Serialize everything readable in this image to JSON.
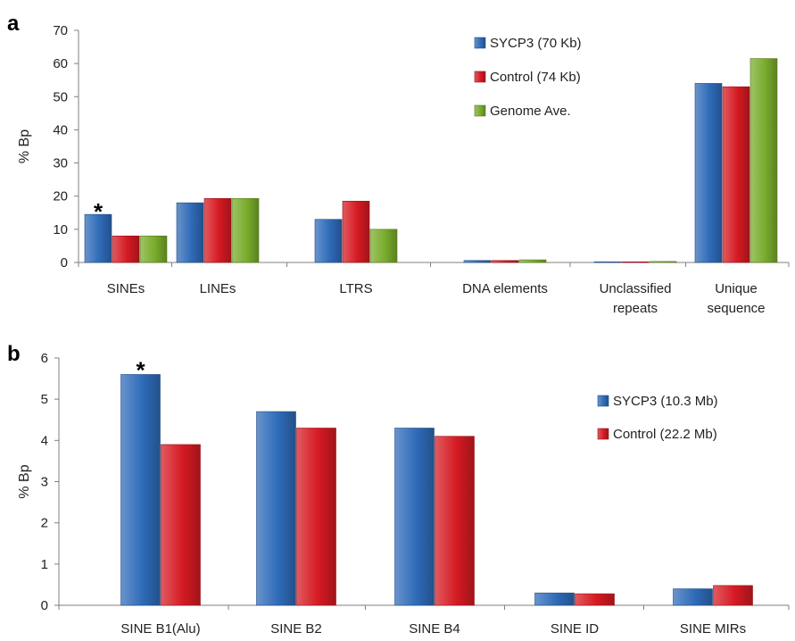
{
  "chart_data": [
    {
      "panel": "a",
      "type": "bar",
      "ylabel": "% Bp",
      "ylim": [
        0,
        70
      ],
      "yticks": [
        0,
        10,
        20,
        30,
        40,
        50,
        60,
        70
      ],
      "categories": [
        [
          "SINEs"
        ],
        [
          "LINEs"
        ],
        [
          "LTRS"
        ],
        [
          "DNA elements"
        ],
        [
          "Unclassified",
          "repeats"
        ],
        [
          "Unique",
          "sequence"
        ]
      ],
      "series": [
        {
          "name": "SYCP3  (70 Kb)",
          "color": "#2e6bb8",
          "values": [
            14.5,
            18,
            13,
            0.6,
            0.2,
            54
          ]
        },
        {
          "name": "Control (74 Kb)",
          "color": "#d51a22",
          "values": [
            8,
            19.3,
            18.5,
            0.6,
            0.2,
            53
          ]
        },
        {
          "name": "Genome Ave.",
          "color": "#79ac2c",
          "values": [
            8,
            19.3,
            10,
            0.8,
            0.3,
            61.5
          ]
        }
      ],
      "annotations": [
        {
          "text": "*",
          "category_index": 0
        }
      ],
      "legend_position": "top-right"
    },
    {
      "panel": "b",
      "type": "bar",
      "ylabel": "% Bp",
      "ylim": [
        0,
        6
      ],
      "yticks": [
        0,
        1,
        2,
        3,
        4,
        5,
        6
      ],
      "categories": [
        [
          "SINE B1(Alu)"
        ],
        [
          "SINE B2"
        ],
        [
          "SINE B4"
        ],
        [
          "SINE ID"
        ],
        [
          "SINE MIRs"
        ]
      ],
      "series": [
        {
          "name": "SYCP3 (10.3 Mb)",
          "color": "#2e6bb8",
          "values": [
            5.6,
            4.7,
            4.3,
            0.3,
            0.4
          ]
        },
        {
          "name": "Control (22.2 Mb)",
          "color": "#d51a22",
          "values": [
            3.9,
            4.3,
            4.1,
            0.28,
            0.48
          ]
        }
      ],
      "annotations": [
        {
          "text": "*",
          "category_index": 0
        }
      ],
      "legend_position": "top-right"
    }
  ]
}
